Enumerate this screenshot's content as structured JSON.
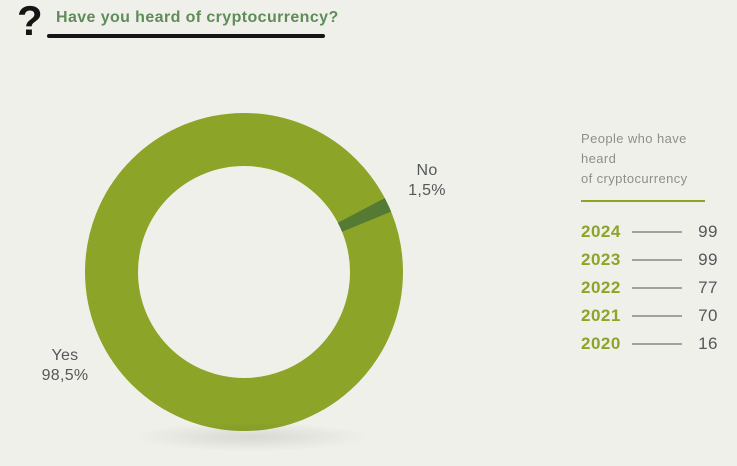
{
  "header": {
    "icon": "question-mark",
    "title": "Have you heard of cryptocurrency?"
  },
  "chart_data": [
    {
      "type": "pie",
      "subtype": "donut",
      "title": "Have you heard of cryptocurrency?",
      "labels": [
        "Yes",
        "No"
      ],
      "values": [
        98.5,
        1.5
      ],
      "display_values": [
        "98,5%",
        "1,5%"
      ],
      "colors": [
        "#8ca428",
        "#547a33"
      ],
      "no_slice_center_angle_deg_cw_from_top": 65,
      "inner_radius_ratio": 0.667,
      "legend_position": "labels-outside"
    },
    {
      "type": "table",
      "title": "People who have heard of cryptocurrency",
      "categories": [
        "2024",
        "2023",
        "2022",
        "2021",
        "2020"
      ],
      "values": [
        99,
        99,
        77,
        70,
        16
      ]
    }
  ],
  "side_panel": {
    "heading_line1": "People who have heard",
    "heading_line2": "of cryptocurrency",
    "rows": [
      {
        "year": "2024",
        "value": "99"
      },
      {
        "year": "2023",
        "value": "99"
      },
      {
        "year": "2022",
        "value": "77"
      },
      {
        "year": "2021",
        "value": "70"
      },
      {
        "year": "2020",
        "value": "16"
      }
    ]
  },
  "colors": {
    "background": "#f0f0ea",
    "title_green": "#5f8c58",
    "donut_green": "#8ca428",
    "donut_dark_green": "#547a33",
    "text_gray": "#55585a",
    "heading_gray": "#8d9089",
    "line_gray": "#a3a39c",
    "black": "#151515"
  }
}
